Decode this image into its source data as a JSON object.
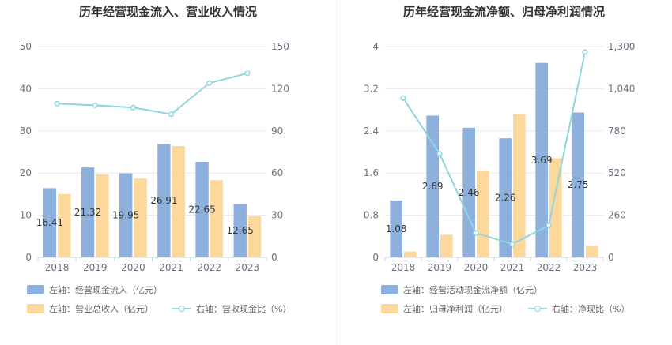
{
  "colors": {
    "blue_bar": "#8eb0dc",
    "orange_bar": "#fdd89c",
    "line": "#8fd6de",
    "grid": "#e7eaf0",
    "text": "#6b7280"
  },
  "chart_data": [
    {
      "type": "bar",
      "title": "历年经营现金流入、营业收入情况",
      "categories": [
        "2018",
        "2019",
        "2020",
        "2021",
        "2022",
        "2023"
      ],
      "y_left": {
        "min": 0,
        "max": 50,
        "ticks": [
          "0",
          "10",
          "20",
          "30",
          "40",
          "50"
        ]
      },
      "y_right": {
        "min": 0,
        "max": 150,
        "ticks": [
          "0",
          "30",
          "60",
          "90",
          "120",
          "150"
        ]
      },
      "series": [
        {
          "name": "左轴：经营现金流入（亿元）",
          "type": "bar",
          "axis": "left",
          "values": [
            16.41,
            21.32,
            19.95,
            26.91,
            22.65,
            12.65
          ],
          "labels": [
            "16.41",
            "21.32",
            "19.95",
            "26.91",
            "22.65",
            "12.65"
          ]
        },
        {
          "name": "左轴：营业总收入（亿元）",
          "type": "bar",
          "axis": "left",
          "values": [
            15.0,
            19.7,
            18.7,
            26.4,
            18.3,
            9.8
          ]
        },
        {
          "name": "右轴：营收现金比（%）",
          "type": "line",
          "axis": "right",
          "values": [
            109.4,
            108.2,
            106.6,
            101.9,
            124.0,
            131.0
          ]
        }
      ]
    },
    {
      "type": "bar",
      "title": "历年经营现金流净额、归母净利润情况",
      "categories": [
        "2018",
        "2019",
        "2020",
        "2021",
        "2022",
        "2023"
      ],
      "y_left": {
        "min": 0,
        "max": 4,
        "ticks": [
          "0",
          "0.8",
          "1.6",
          "2.4",
          "3.2",
          "4"
        ]
      },
      "y_right": {
        "min": 0,
        "max": 1300,
        "ticks": [
          "0",
          "260",
          "520",
          "780",
          "1,040",
          "1,300"
        ]
      },
      "series": [
        {
          "name": "左轴：经营活动现金流净额（亿元）",
          "type": "bar",
          "axis": "left",
          "values": [
            1.08,
            2.69,
            2.46,
            2.26,
            3.69,
            2.75
          ],
          "labels": [
            "1.08",
            "2.69",
            "2.46",
            "2.26",
            "3.69",
            "2.75"
          ]
        },
        {
          "name": "左轴：归母净利润（亿元）",
          "type": "bar",
          "axis": "left",
          "values": [
            0.11,
            0.43,
            1.65,
            2.72,
            1.88,
            0.22
          ]
        },
        {
          "name": "右轴：净现比（%）",
          "type": "line",
          "axis": "right",
          "values": [
            982,
            640,
            150,
            82,
            197,
            1267
          ]
        }
      ]
    }
  ]
}
